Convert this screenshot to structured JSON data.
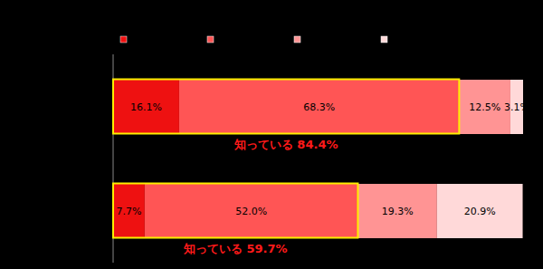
{
  "chart_data": {
    "type": "bar",
    "orientation": "horizontal",
    "stacked": true,
    "categories": [
      null,
      null
    ],
    "series": [
      {
        "color": "#ee1111",
        "values": [
          16.1,
          7.7
        ],
        "value_labels": [
          "16.1%",
          "7.7%"
        ]
      },
      {
        "color": "#ff5555",
        "values": [
          68.3,
          52.0
        ],
        "value_labels": [
          "68.3%",
          "52.0%"
        ]
      },
      {
        "color": "#ff9494",
        "values": [
          12.5,
          19.3
        ],
        "value_labels": [
          "12.5%",
          "19.3%"
        ]
      },
      {
        "color": "#ffd9d9",
        "values": [
          3.1,
          20.9
        ],
        "value_labels": [
          "3.1%",
          "20.9%"
        ]
      }
    ],
    "xlim": [
      0,
      100
    ],
    "tick_labels": false,
    "data_labels": true,
    "legend": "top",
    "annotations": [
      "知っている 84.4%",
      "知っている 59.7%"
    ]
  }
}
